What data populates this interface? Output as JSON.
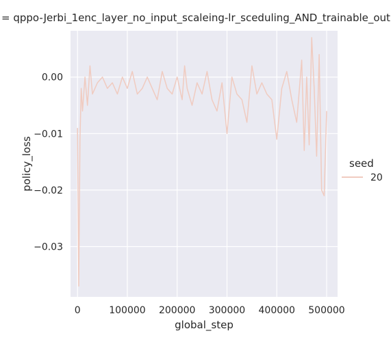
{
  "chart_data": {
    "type": "line",
    "title": "= qppo-Jerbi_1enc_layer_no_input_scaleing-lr_sceduling_AND_trainable_out",
    "xlabel": "global_step",
    "ylabel": "policy_loss",
    "xlim": [
      -14000,
      522000
    ],
    "ylim": [
      -0.0389,
      0.0082
    ],
    "xticks": [
      0,
      100000,
      200000,
      300000,
      400000,
      500000
    ],
    "xtick_labels": [
      "0",
      "100000",
      "200000",
      "300000",
      "400000",
      "500000"
    ],
    "yticks": [
      -0.03,
      -0.02,
      -0.01,
      0.0
    ],
    "ytick_labels": [
      "−0.03",
      "−0.02",
      "−0.01",
      "0.00"
    ],
    "grid": true,
    "legend": {
      "title": "seed",
      "placement": "right",
      "entries": [
        "20"
      ]
    },
    "colors": {
      "series": "#f0cbc0",
      "plot_bg": "#eaeaf2",
      "grid": "#ffffff"
    },
    "series": [
      {
        "name": "20",
        "x": [
          0,
          2500,
          5000,
          7500,
          10000,
          15000,
          20000,
          25000,
          30000,
          40000,
          50000,
          60000,
          70000,
          80000,
          90000,
          100000,
          110000,
          120000,
          130000,
          140000,
          150000,
          160000,
          170000,
          180000,
          190000,
          200000,
          210000,
          215000,
          220000,
          230000,
          240000,
          250000,
          260000,
          270000,
          280000,
          290000,
          300000,
          310000,
          320000,
          330000,
          340000,
          350000,
          360000,
          370000,
          380000,
          390000,
          400000,
          410000,
          420000,
          430000,
          440000,
          450000,
          455000,
          460000,
          465000,
          470000,
          475000,
          480000,
          485000,
          490000,
          495000,
          500000
        ],
        "y": [
          -0.009,
          -0.037,
          -0.011,
          -0.002,
          -0.006,
          0.0,
          -0.005,
          0.002,
          -0.003,
          -0.001,
          0.0,
          -0.002,
          -0.001,
          -0.003,
          0.0,
          -0.002,
          0.001,
          -0.003,
          -0.002,
          0.0,
          -0.002,
          -0.004,
          0.001,
          -0.002,
          -0.003,
          0.0,
          -0.004,
          0.002,
          -0.002,
          -0.005,
          -0.001,
          -0.003,
          0.001,
          -0.004,
          -0.006,
          -0.001,
          -0.01,
          0.0,
          -0.003,
          -0.004,
          -0.008,
          0.002,
          -0.003,
          -0.001,
          -0.003,
          -0.004,
          -0.011,
          -0.002,
          0.001,
          -0.004,
          -0.008,
          0.003,
          -0.013,
          0.0,
          -0.012,
          0.007,
          -0.002,
          -0.014,
          0.004,
          -0.02,
          -0.021,
          -0.006
        ]
      }
    ]
  }
}
